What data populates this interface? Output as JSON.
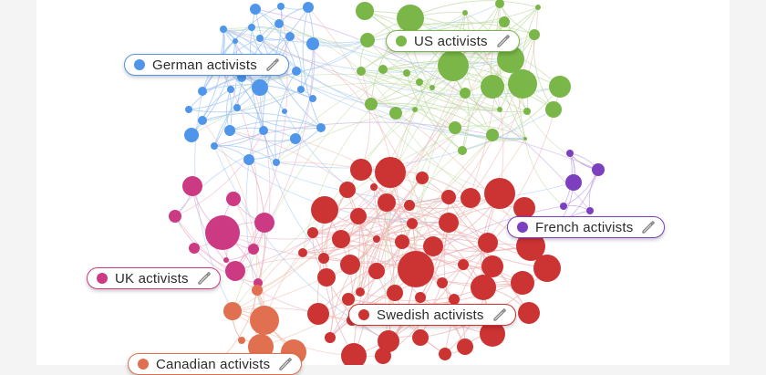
{
  "clusters": [
    {
      "key": "german",
      "label": "German activists",
      "color": "#4f96ea",
      "icon": "pencil-icon"
    },
    {
      "key": "us",
      "label": "US activists",
      "color": "#7ab648",
      "icon": "pencil-icon"
    },
    {
      "key": "french",
      "label": "French activists",
      "color": "#7b3fbf",
      "icon": "pencil-icon"
    },
    {
      "key": "uk",
      "label": "UK activists",
      "color": "#cc3a84",
      "icon": "pencil-icon"
    },
    {
      "key": "swedish",
      "label": "Swedish activists",
      "color": "#cc3333",
      "icon": "pencil-icon"
    },
    {
      "key": "canadian",
      "label": "Canadian activists",
      "color": "#e07050",
      "icon": "pencil-icon"
    }
  ]
}
